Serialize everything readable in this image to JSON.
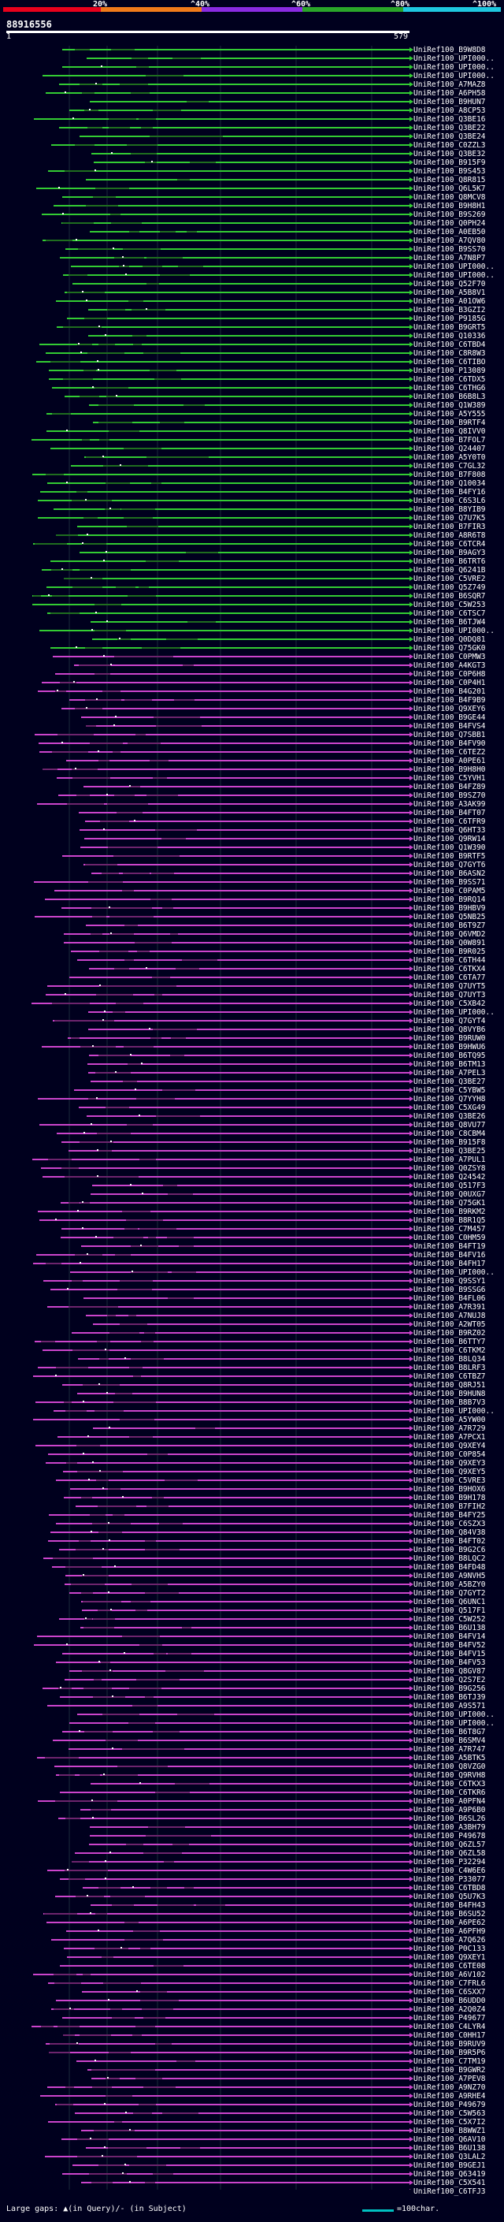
{
  "legend": {
    "colors": [
      "#e8001c",
      "#f07a1a",
      "#8a2be2",
      "#2aa52a",
      "#1ec8e0"
    ],
    "labels": [
      "20%",
      "^40%",
      "^60%",
      "^80%",
      "^100%"
    ]
  },
  "query": {
    "id": "88916556",
    "start": "1",
    "end": "579"
  },
  "hits": [
    "UniRef100_B9W8D8",
    "UniRef100_UPI000..",
    "UniRef100_UPI000..",
    "UniRef100_UPI000..",
    "UniRef100_A7MAZ8",
    "UniRef100_A6PH58",
    "UniRef100_B9HUN7",
    "UniRef100_A8CP53",
    "UniRef100_Q3BE16",
    "UniRef100_Q3BE22",
    "UniRef100_Q3BE24",
    "UniRef100_C0ZZL3",
    "UniRef100_Q3BE32",
    "UniRef100_B915F9",
    "UniRef100_B9S453",
    "UniRef100_Q8R815",
    "UniRef100_Q6L5K7",
    "UniRef100_Q8MCV8",
    "UniRef100_B9H8H1",
    "UniRef100_B9S269",
    "UniRef100_Q0PH24",
    "UniRef100_A0EB50",
    "UniRef100_A7QV80",
    "UniRef100_B9SS70",
    "UniRef100_A7N8P7",
    "UniRef100_UPI000..",
    "UniRef100_UPI000..",
    "UniRef100_Q52F70",
    "UniRef100_A5B8V1",
    "UniRef100_A01OW6",
    "UniRef100_B3GZI2",
    "UniRef100_P9185G",
    "UniRef100_B9GRT5",
    "UniRef100_Q10336",
    "UniRef100_C6TBD4",
    "UniRef100_C8R8W3",
    "UniRef100_C6TIBO",
    "UniRef100_P13089",
    "UniRef100_C6TDX5",
    "UniRef100_C6THG6",
    "UniRef100_B6B8L3",
    "UniRef100_Q1W389",
    "UniRef100_A5Y555",
    "UniRef100_B9RTF4",
    "UniRef100_Q8IVV0",
    "UniRef100_B7FOL7",
    "UniRef100_Q24407",
    "UniRef100_A5Y0T0",
    "UniRef100_C7GL32",
    "UniRef100_B7F808",
    "UniRef100_Q10034",
    "UniRef100_B4FY16",
    "UniRef100_C6S3L6",
    "UniRef100_B8YIB9",
    "UniRef100_Q7U7K5",
    "UniRef100_B7FIR3",
    "UniRef100_A8R6T8",
    "UniRef100_C6TCR4",
    "UniRef100_B9AGY3",
    "UniRef100_B6TRT6",
    "UniRef100_Q6241B",
    "UniRef100_C5VRE2",
    "UniRef100_Q5Z749",
    "UniRef100_B6SQR7",
    "UniRef100_C5W253",
    "UniRef100_C6TSC7",
    "UniRef100_B6TJW4",
    "UniRef100_UPI000..",
    "UniRef100_Q0DQ81",
    "UniRef100_Q75GK0",
    "UniRef100_C0PMW3",
    "UniRef100_A4KGT3",
    "UniRef100_C0P6H8",
    "UniRef100_C0P4H1",
    "UniRef100_B4G201",
    "UniRef100_B4F9B9",
    "UniRef100_Q9XEY6",
    "UniRef100_B9GE44",
    "UniRef100_B4FVS4",
    "UniRef100_Q7SBB1",
    "UniRef100_B4FV90",
    "UniRef100_C6TEZ2",
    "UniRef100_A0PE61",
    "UniRef100_B9H8H0",
    "UniRef100_C5YVH1",
    "UniRef100_B4FZ89",
    "UniRef100_B9SZ70",
    "UniRef100_A3AK99",
    "UniRef100_B4FT07",
    "UniRef100_C6TFR9",
    "UniRef100_Q6HT33",
    "UniRef100_Q9RW14",
    "UniRef100_Q1W390",
    "UniRef100_B9RTF5",
    "UniRef100_Q7GYT6",
    "UniRef100_B6ASN2",
    "UniRef100_B9SS71",
    "UniRef100_C0PAM5",
    "UniRef100_B9RQ14",
    "UniRef100_B9HBV9",
    "UniRef100_Q5NB25",
    "UniRef100_B6T9Z7",
    "UniRef100_Q6VMD2",
    "UniRef100_Q0W891",
    "UniRef100_B9R025",
    "UniRef100_C6TH44",
    "UniRef100_C6TKX4",
    "UniRef100_C6TA77",
    "UniRef100_Q7UYT5",
    "UniRef100_Q7UYT3",
    "UniRef100_C5XB42",
    "UniRef100_UPI000..",
    "UniRef100_Q7GYT4",
    "UniRef100_Q8VYB6",
    "UniRef100_B9RUW0",
    "UniRef100_B9HWU6",
    "UniRef100_B6TQ95",
    "UniRef100_B6TM13",
    "UniRef100_A7PEL3",
    "UniRef100_Q3BE27",
    "UniRef100_C5YBW5",
    "UniRef100_Q7YYH8",
    "UniRef100_C5XG49",
    "UniRef100_Q3BE26",
    "UniRef100_Q8VU77",
    "UniRef100_C8CBM4",
    "UniRef100_B915F8",
    "UniRef100_Q3BE25",
    "UniRef100_A7PUL1",
    "UniRef100_Q0ZSY8",
    "UniRef100_Q24542",
    "UniRef100_Q517F3",
    "UniRef100_Q0UXG7",
    "UniRef100_Q75GK1",
    "UniRef100_B9RKM2",
    "UniRef100_B8R1Q5",
    "UniRef100_C7M457",
    "UniRef100_C0HM59",
    "UniRef100_B4FT19",
    "UniRef100_B4FV16",
    "UniRef100_B4FH17",
    "UniRef100_UPI000..",
    "UniRef100_Q9SSY1",
    "UniRef100_B9SSG6",
    "UniRef100_B4FL06",
    "UniRef100_A7R391",
    "UniRef100_A7NUJ8",
    "UniRef100_A2WT05",
    "UniRef100_B9RZ02",
    "UniRef100_B6TTY7",
    "UniRef100_C6TKM2",
    "UniRef100_B8LQ34",
    "UniRef100_B8LRF3",
    "UniRef100_C6TBZ7",
    "UniRef100_Q8RJ51",
    "UniRef100_B9HUN8",
    "UniRef100_B8B7V3",
    "UniRef100_UPI000..",
    "UniRef100_A5YW00",
    "UniRef100_A7R729",
    "UniRef100_A7PCX1",
    "UniRef100_Q9XEY4",
    "UniRef100_C0P854",
    "UniRef100_Q9XEY3",
    "UniRef100_Q9XEY5",
    "UniRef100_C5VRE3",
    "UniRef100_B9HOX6",
    "UniRef100_B9H178",
    "UniRef100_B7FIH2",
    "UniRef100_B4FY25",
    "UniRef100_C6SZX3",
    "UniRef100_Q84V38",
    "UniRef100_B4FT02",
    "UniRef100_B9G2C6",
    "UniRef100_B8LQC2",
    "UniRef100_B4FD48",
    "UniRef100_A9NVH5",
    "UniRef100_A5BZY0",
    "UniRef100_Q7GYT2",
    "UniRef100_Q6UNC1",
    "UniRef100_Q517F1",
    "UniRef100_C5W252",
    "UniRef100_B6U138",
    "UniRef100_B4FV14",
    "UniRef100_B4FV52",
    "UniRef100_B4FV15",
    "UniRef100_B4FV53",
    "UniRef100_Q8GV87",
    "UniRef100_Q2S7E2",
    "UniRef100_B9G256",
    "UniRef100_B6TJ39",
    "UniRef100_A9S571",
    "UniRef100_UPI000..",
    "UniRef100_UPI000..",
    "UniRef100_B6T8G7",
    "UniRef100_B6SMV4",
    "UniRef100_A7R747",
    "UniRef100_A5BTK5",
    "UniRef100_Q8VZG0",
    "UniRef100_Q9RVH8",
    "UniRef100_C6TKX3",
    "UniRef100_C6TKR6",
    "UniRef100_A0PFN4",
    "UniRef100_A9P6B0",
    "UniRef100_B6SL26",
    "UniRef100_A3BH79",
    "UniRef100_P49678",
    "UniRef100_Q6ZL57",
    "UniRef100_Q6ZL58",
    "UniRef100_P32294",
    "UniRef100_C4W6E6",
    "UniRef100_P33077",
    "UniRef100_C6TBD8",
    "UniRef100_Q5U7K3",
    "UniRef100_B4FH43",
    "UniRef100_B6SU52",
    "UniRef100_A6PE62",
    "UniRef100_A6PFH9",
    "UniRef100_A7Q626",
    "UniRef100_P0C133",
    "UniRef100_Q9XEY1",
    "UniRef100_C6TE08",
    "UniRef100_A6V102",
    "UniRef100_C7FRL6",
    "UniRef100_C6SXX7",
    "UniRef100_B6UDD0",
    "UniRef100_A2Q0Z4",
    "UniRef100_P49677",
    "UniRef100_C4LYR4",
    "UniRef100_C0HH17",
    "UniRef100_B9RUV9",
    "UniRef100_B9R5P6",
    "UniRef100_C7TM19",
    "UniRef100_B9GWR2",
    "UniRef100_A7PEV8",
    "UniRef100_A9NZ70",
    "UniRef100_A9RHE4",
    "UniRef100_P49679",
    "UniRef100_C5W563",
    "UniRef100_C5X7I2",
    "UniRef100_B8WWZ1",
    "UniRef100_Q6AV10",
    "UniRef100_B6U138",
    "UniRef100_Q3LAL2",
    "UniRef100_B9GEJ1",
    "UniRef100_Q63419",
    "UniRef100_C5X541",
    "UniRef100_C6TFJ3"
  ],
  "footer": {
    "gaps_label": "Large gaps: ▲(in Query)/- (in Subject)",
    "scale_label": "=100char."
  }
}
